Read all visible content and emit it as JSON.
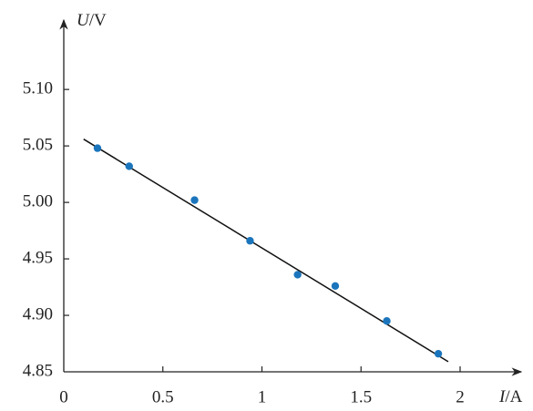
{
  "chart_data": {
    "type": "scatter",
    "x_label_symbol": "I",
    "x_label_unit": "/A",
    "y_label_symbol": "U",
    "y_label_unit": "/V",
    "xlim": [
      0,
      2.28
    ],
    "ylim": [
      4.85,
      5.155
    ],
    "xticks": [
      0,
      0.5,
      1,
      1.5,
      2
    ],
    "yticks": [
      4.85,
      {
        "value": 4.9,
        "label": "4.90"
      },
      4.95,
      {
        "value": 5,
        "label": "5.00"
      },
      5.05,
      {
        "value": 5.1,
        "label": "5.10"
      }
    ],
    "series": [
      {
        "kind": "points",
        "color": "#1b75bc",
        "x": [
          0.17,
          0.33,
          0.66,
          0.94,
          1.18,
          1.37,
          1.63,
          1.89
        ],
        "values": [
          5.048,
          5.032,
          5.002,
          4.966,
          4.936,
          4.926,
          4.895,
          4.866
        ]
      },
      {
        "kind": "line",
        "color": "#111111",
        "x": [
          0.1,
          1.94
        ],
        "values": [
          5.056,
          4.859
        ]
      }
    ]
  }
}
